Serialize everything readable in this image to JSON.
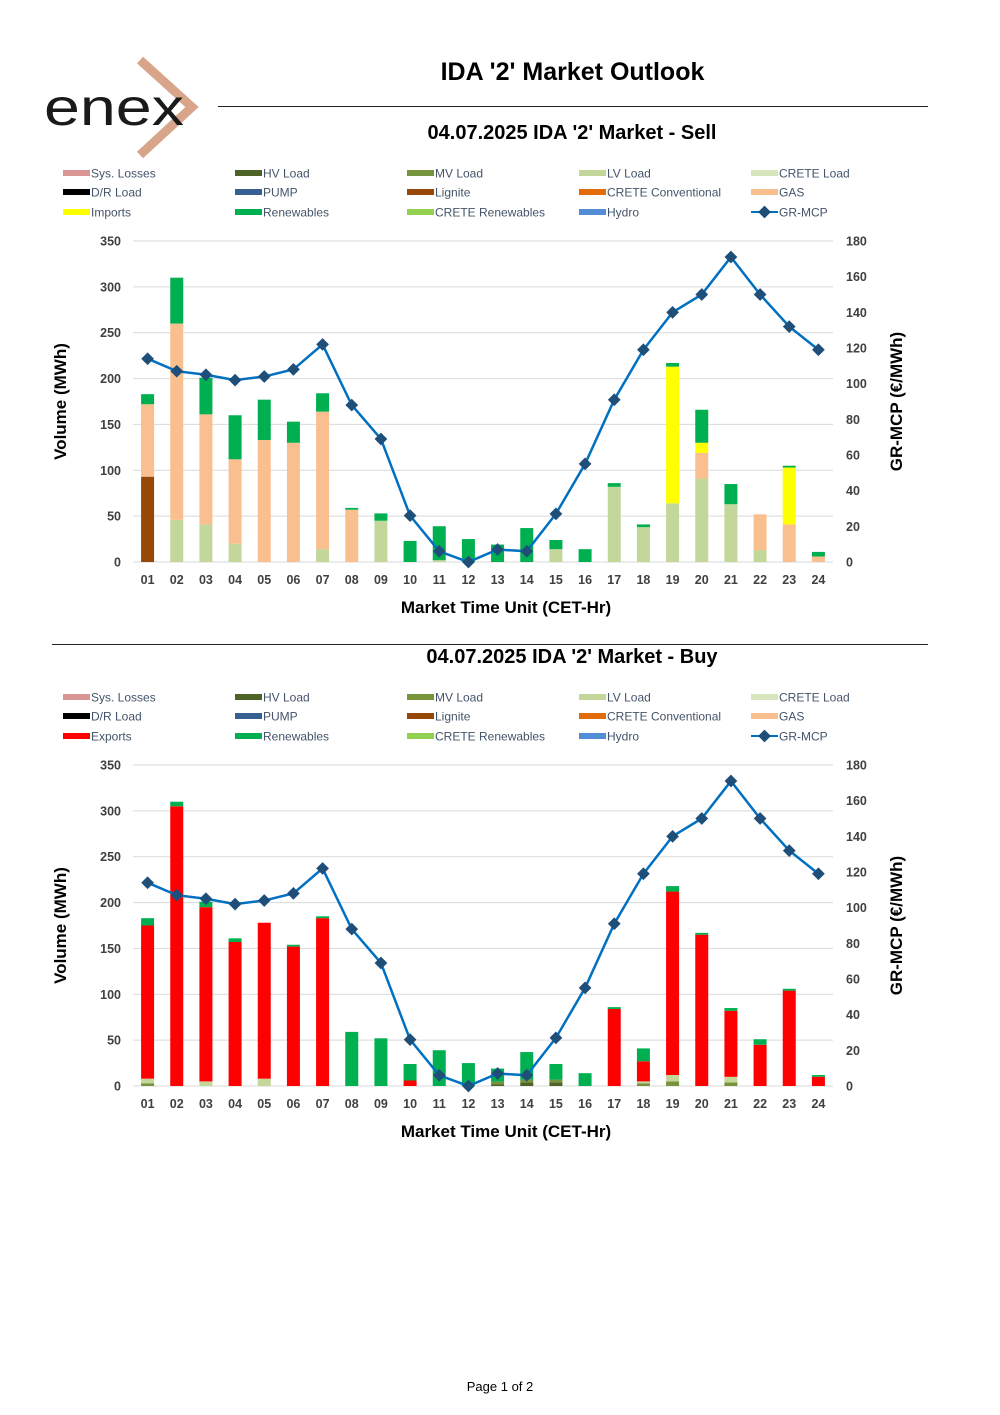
{
  "page": {
    "title": "IDA '2' Market Outlook",
    "logo_text": "enex",
    "footer": "Page 1 of 2"
  },
  "colors": {
    "Sys. Losses": "#DA9694",
    "HV Load": "#4F6228",
    "MV Load": "#77933C",
    "LV Load": "#C4D79B",
    "CRETE Load": "#D8E4BC",
    "D/R Load": "#000000",
    "PUMP": "#366092",
    "Lignite": "#974706",
    "CRETE Conventional": "#E26B0A",
    "GAS": "#FABF8F",
    "Imports": "#FFFF00",
    "Exports": "#FF0000",
    "Renewables": "#00B050",
    "CRETE Renewables": "#92D050",
    "Hydro": "#538DD5",
    "GR-MCP": "#0070C0",
    "GR-MCP-marker": "#1F4E79",
    "logo_dark": "#1a1a1a",
    "logo_accent": "#D9A58A"
  },
  "chart_data": [
    {
      "type": "bar",
      "title": "04.07.2025  IDA '2' Market - Sell",
      "xlabel": "Market Time Unit (CET-Hr)",
      "ylabel": "Volume (MWh)",
      "y2label": "GR-MCP (€/MWh)",
      "ylim": [
        0,
        350
      ],
      "y2lim": [
        0,
        180
      ],
      "stacked": true,
      "grid": true,
      "legend_placement": "top",
      "legend": [
        "Sys. Losses",
        "HV Load",
        "MV Load",
        "LV Load",
        "CRETE Load",
        "D/R Load",
        "PUMP",
        "Lignite",
        "CRETE Conventional",
        "GAS",
        "Imports",
        "Renewables",
        "CRETE Renewables",
        "Hydro",
        "GR-MCP"
      ],
      "categories": [
        "01",
        "02",
        "03",
        "04",
        "05",
        "06",
        "07",
        "08",
        "09",
        "10",
        "11",
        "12",
        "13",
        "14",
        "15",
        "16",
        "17",
        "18",
        "19",
        "20",
        "21",
        "22",
        "23",
        "24"
      ],
      "series": [
        {
          "name": "Lignite",
          "values": [
            93,
            0,
            0,
            0,
            0,
            0,
            0,
            0,
            0,
            0,
            0,
            0,
            0,
            0,
            0,
            0,
            0,
            0,
            0,
            0,
            0,
            0,
            0,
            0
          ]
        },
        {
          "name": "LV Load",
          "values": [
            0,
            46,
            41,
            20,
            0,
            0,
            14,
            0,
            45,
            0,
            2,
            0,
            0,
            0,
            14,
            0,
            82,
            38,
            64,
            91,
            63,
            13,
            0,
            0
          ]
        },
        {
          "name": "GAS",
          "values": [
            79,
            214,
            120,
            92,
            133,
            130,
            150,
            57,
            0,
            0,
            0,
            0,
            0,
            0,
            0,
            0,
            0,
            0,
            0,
            28,
            0,
            39,
            41,
            6
          ]
        },
        {
          "name": "Imports",
          "values": [
            0,
            0,
            0,
            0,
            0,
            0,
            0,
            0,
            0,
            0,
            0,
            0,
            0,
            0,
            0,
            0,
            0,
            0,
            149,
            11,
            0,
            0,
            62,
            0
          ]
        },
        {
          "name": "Renewables",
          "values": [
            11,
            50,
            40,
            48,
            44,
            23,
            20,
            2,
            8,
            23,
            37,
            25,
            19,
            37,
            10,
            14,
            4,
            3,
            4,
            36,
            22,
            0,
            2,
            5
          ]
        }
      ],
      "line": {
        "name": "GR-MCP",
        "axis": "right",
        "values": [
          114,
          107,
          105,
          102,
          104,
          108,
          122,
          88,
          69,
          26,
          6,
          0,
          7,
          6,
          27,
          55,
          91,
          119,
          140,
          150,
          171,
          150,
          132,
          119
        ]
      }
    },
    {
      "type": "bar",
      "title": "04.07.2025  IDA '2' Market - Buy",
      "xlabel": "Market Time Unit (CET-Hr)",
      "ylabel": "Volume (MWh)",
      "y2label": "GR-MCP (€/MWh)",
      "ylim": [
        0,
        350
      ],
      "y2lim": [
        0,
        180
      ],
      "stacked": true,
      "grid": true,
      "legend_placement": "top",
      "legend": [
        "Sys. Losses",
        "HV Load",
        "MV Load",
        "LV Load",
        "CRETE Load",
        "D/R Load",
        "PUMP",
        "Lignite",
        "CRETE Conventional",
        "GAS",
        "Exports",
        "Renewables",
        "CRETE Renewables",
        "Hydro",
        "GR-MCP"
      ],
      "categories": [
        "01",
        "02",
        "03",
        "04",
        "05",
        "06",
        "07",
        "08",
        "09",
        "10",
        "11",
        "12",
        "13",
        "14",
        "15",
        "16",
        "17",
        "18",
        "19",
        "20",
        "21",
        "22",
        "23",
        "24"
      ],
      "series": [
        {
          "name": "HV Load",
          "values": [
            0,
            0,
            0,
            0,
            0,
            0,
            0,
            0,
            0,
            0,
            0,
            0,
            2,
            4,
            4,
            0,
            0,
            0,
            0,
            0,
            0,
            0,
            0,
            0
          ]
        },
        {
          "name": "MV Load",
          "values": [
            3,
            0,
            0,
            0,
            0,
            0,
            0,
            0,
            0,
            0,
            0,
            0,
            3,
            3,
            3,
            0,
            0,
            3,
            5,
            0,
            4,
            0,
            0,
            0
          ]
        },
        {
          "name": "LV Load",
          "values": [
            5,
            0,
            5,
            0,
            8,
            0,
            0,
            0,
            0,
            0,
            0,
            0,
            0,
            0,
            0,
            0,
            0,
            2,
            7,
            0,
            6,
            0,
            0,
            0
          ]
        },
        {
          "name": "Exports",
          "values": [
            167,
            305,
            190,
            157,
            170,
            152,
            183,
            0,
            0,
            6,
            0,
            0,
            0,
            0,
            0,
            0,
            84,
            22,
            200,
            165,
            72,
            45,
            104,
            10
          ]
        },
        {
          "name": "Renewables",
          "values": [
            8,
            5,
            6,
            4,
            0,
            2,
            2,
            59,
            52,
            18,
            39,
            25,
            14,
            30,
            17,
            14,
            2,
            14,
            6,
            2,
            3,
            6,
            2,
            2
          ]
        }
      ],
      "line": {
        "name": "GR-MCP",
        "axis": "right",
        "values": [
          114,
          107,
          105,
          102,
          104,
          108,
          122,
          88,
          69,
          26,
          6,
          0,
          7,
          6,
          27,
          55,
          91,
          119,
          140,
          150,
          171,
          150,
          132,
          119
        ]
      }
    }
  ]
}
